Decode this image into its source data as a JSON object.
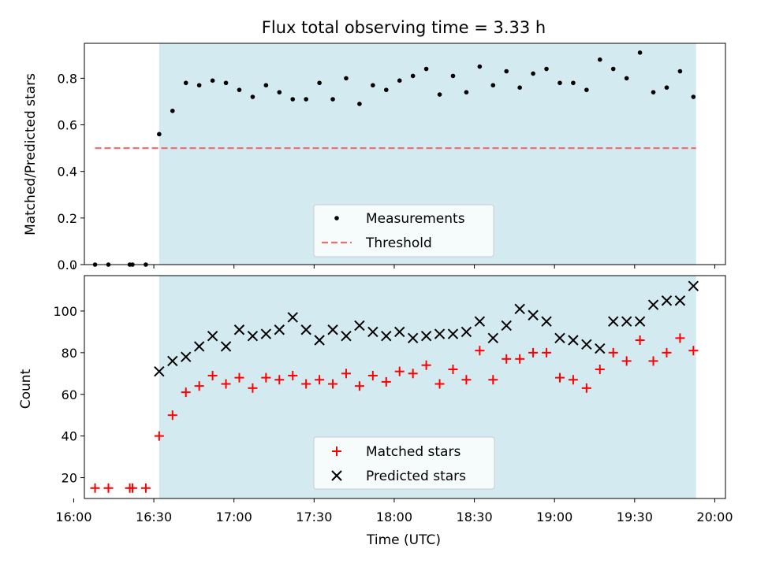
{
  "chart_data": [
    {
      "type": "scatter",
      "title": "Flux total observing time = 3.33 h",
      "xlabel": "",
      "ylabel": "Matched/Predicted stars",
      "xlim": [
        "16:04",
        "20:04"
      ],
      "ylim": [
        0.0,
        0.95
      ],
      "yticks": [
        "0.0",
        "0.2",
        "0.4",
        "0.6",
        "0.8"
      ],
      "grid": false,
      "legend_position": "lower center",
      "shaded_region": {
        "x_start": "16:32",
        "x_end": "19:53",
        "color": "#d3eaf0"
      },
      "series": [
        {
          "name": "Measurements",
          "marker": "dot",
          "color": "#000000",
          "x": [
            "16:08",
            "16:13",
            "16:21",
            "16:22",
            "16:27",
            "16:32",
            "16:37",
            "16:42",
            "16:47",
            "16:52",
            "16:57",
            "17:02",
            "17:07",
            "17:12",
            "17:17",
            "17:22",
            "17:27",
            "17:32",
            "17:37",
            "17:42",
            "17:47",
            "17:52",
            "17:57",
            "18:02",
            "18:07",
            "18:12",
            "18:17",
            "18:22",
            "18:27",
            "18:32",
            "18:37",
            "18:42",
            "18:47",
            "18:52",
            "18:57",
            "19:02",
            "19:07",
            "19:12",
            "19:17",
            "19:22",
            "19:27",
            "19:32",
            "19:37",
            "19:42",
            "19:47",
            "19:52"
          ],
          "y": [
            0.0,
            0.0,
            0.0,
            0.0,
            0.0,
            0.56,
            0.66,
            0.78,
            0.77,
            0.79,
            0.78,
            0.75,
            0.72,
            0.77,
            0.74,
            0.71,
            0.71,
            0.78,
            0.71,
            0.8,
            0.69,
            0.77,
            0.75,
            0.79,
            0.81,
            0.84,
            0.73,
            0.81,
            0.74,
            0.85,
            0.77,
            0.83,
            0.76,
            0.82,
            0.84,
            0.78,
            0.78,
            0.75,
            0.88,
            0.84,
            0.8,
            0.91,
            0.74,
            0.76,
            0.83,
            0.72
          ]
        },
        {
          "name": "Threshold",
          "style": "dashed",
          "color": "#f07070",
          "x": [
            "16:08",
            "19:53"
          ],
          "y": [
            0.5,
            0.5
          ]
        }
      ]
    },
    {
      "type": "scatter",
      "title": "",
      "xlabel": "Time (UTC)",
      "ylabel": "Count",
      "xlim": [
        "16:04",
        "20:04"
      ],
      "ylim": [
        10,
        117
      ],
      "yticks": [
        "20",
        "40",
        "60",
        "80",
        "100"
      ],
      "xticks": [
        "16:00",
        "16:30",
        "17:00",
        "17:30",
        "18:00",
        "18:30",
        "19:00",
        "19:30",
        "20:00"
      ],
      "grid": false,
      "legend_position": "lower center",
      "shaded_region": {
        "x_start": "16:32",
        "x_end": "19:53",
        "color": "#d3eaf0"
      },
      "series": [
        {
          "name": "Matched stars",
          "marker": "plus",
          "color": "#ff0000",
          "x": [
            "16:08",
            "16:13",
            "16:21",
            "16:22",
            "16:27",
            "16:32",
            "16:37",
            "16:42",
            "16:47",
            "16:52",
            "16:57",
            "17:02",
            "17:07",
            "17:12",
            "17:17",
            "17:22",
            "17:27",
            "17:32",
            "17:37",
            "17:42",
            "17:47",
            "17:52",
            "17:57",
            "18:02",
            "18:07",
            "18:12",
            "18:17",
            "18:22",
            "18:27",
            "18:32",
            "18:37",
            "18:42",
            "18:47",
            "18:52",
            "18:57",
            "19:02",
            "19:07",
            "19:12",
            "19:17",
            "19:22",
            "19:27",
            "19:32",
            "19:37",
            "19:42",
            "19:47",
            "19:52"
          ],
          "y": [
            15,
            15,
            15,
            15,
            15,
            40,
            50,
            61,
            64,
            69,
            65,
            68,
            63,
            68,
            67,
            69,
            65,
            67,
            65,
            70,
            64,
            69,
            66,
            71,
            70,
            74,
            65,
            72,
            67,
            81,
            67,
            77,
            77,
            80,
            80,
            68,
            67,
            63,
            72,
            80,
            76,
            86,
            76,
            80,
            87,
            81
          ]
        },
        {
          "name": "Predicted stars",
          "marker": "x",
          "color": "#000000",
          "x": [
            "16:32",
            "16:37",
            "16:42",
            "16:47",
            "16:52",
            "16:57",
            "17:02",
            "17:07",
            "17:12",
            "17:17",
            "17:22",
            "17:27",
            "17:32",
            "17:37",
            "17:42",
            "17:47",
            "17:52",
            "17:57",
            "18:02",
            "18:07",
            "18:12",
            "18:17",
            "18:22",
            "18:27",
            "18:32",
            "18:37",
            "18:42",
            "18:47",
            "18:52",
            "18:57",
            "19:02",
            "19:07",
            "19:12",
            "19:17",
            "19:22",
            "19:27",
            "19:32",
            "19:37",
            "19:42",
            "19:47",
            "19:52"
          ],
          "y": [
            71,
            76,
            78,
            83,
            88,
            83,
            91,
            88,
            89,
            91,
            97,
            91,
            86,
            91,
            88,
            93,
            90,
            88,
            90,
            87,
            88,
            89,
            89,
            90,
            95,
            87,
            93,
            101,
            98,
            95,
            87,
            86,
            84,
            82,
            95,
            95,
            95,
            103,
            105,
            105,
            112
          ]
        }
      ]
    }
  ]
}
